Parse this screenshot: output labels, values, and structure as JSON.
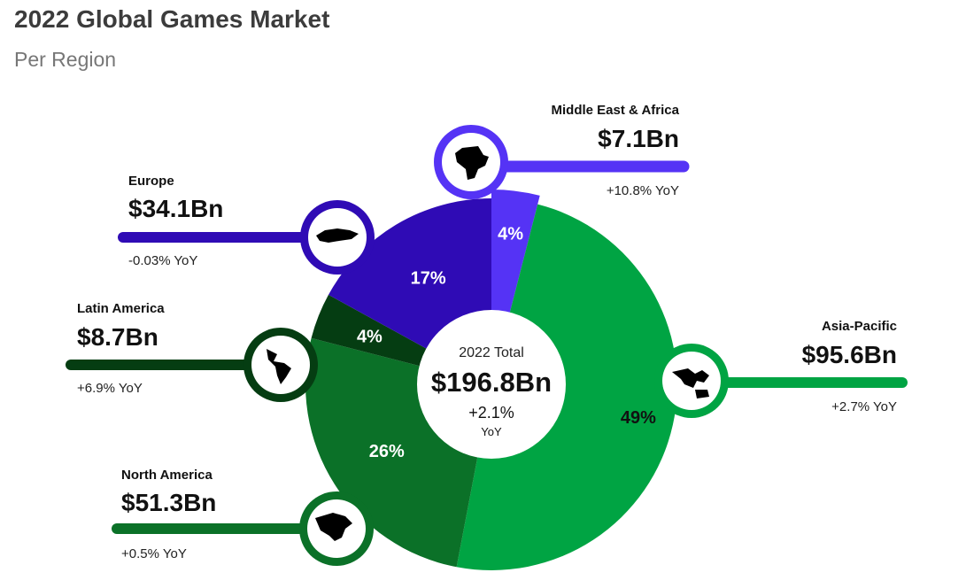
{
  "title": "2022 Global Games Market",
  "subtitle": "Per Region",
  "center": {
    "caption": "2022 Total",
    "total": "$196.8Bn",
    "yoy": "+2.1%",
    "yoy_unit": "YoY"
  },
  "colors": {
    "middle_east_africa": "#5533f5",
    "asia_pacific": "#00a443",
    "north_america": "#0b7128",
    "latin_america": "#053d12",
    "europe": "#2f0bb5"
  },
  "chart_data": {
    "type": "pie",
    "title": "2022 Global Games Market",
    "subtitle": "Per Region",
    "slices": [
      {
        "name": "Middle East & Africa",
        "value": 7.1,
        "percent": 4,
        "percent_label": "4%",
        "value_label": "$7.1Bn",
        "yoy": "+10.8% YoY",
        "color": "#5533f5",
        "icon": "africa-map-icon"
      },
      {
        "name": "Asia-Pacific",
        "value": 95.6,
        "percent": 49,
        "percent_label": "49%",
        "value_label": "$95.6Bn",
        "yoy": "+2.7% YoY",
        "color": "#00a443",
        "icon": "asia-pacific-map-icon"
      },
      {
        "name": "North America",
        "value": 51.3,
        "percent": 26,
        "percent_label": "26%",
        "value_label": "$51.3Bn",
        "yoy": "+0.5% YoY",
        "color": "#0b7128",
        "icon": "north-america-map-icon"
      },
      {
        "name": "Latin America",
        "value": 8.7,
        "percent": 4,
        "percent_label": "4%",
        "value_label": "$8.7Bn",
        "yoy": "+6.9% YoY",
        "color": "#053d12",
        "icon": "latin-america-map-icon"
      },
      {
        "name": "Europe",
        "value": 34.1,
        "percent": 17,
        "percent_label": "17%",
        "value_label": "$34.1Bn",
        "yoy": "-0.03% YoY",
        "color": "#2f0bb5",
        "icon": "europe-map-icon"
      }
    ]
  }
}
